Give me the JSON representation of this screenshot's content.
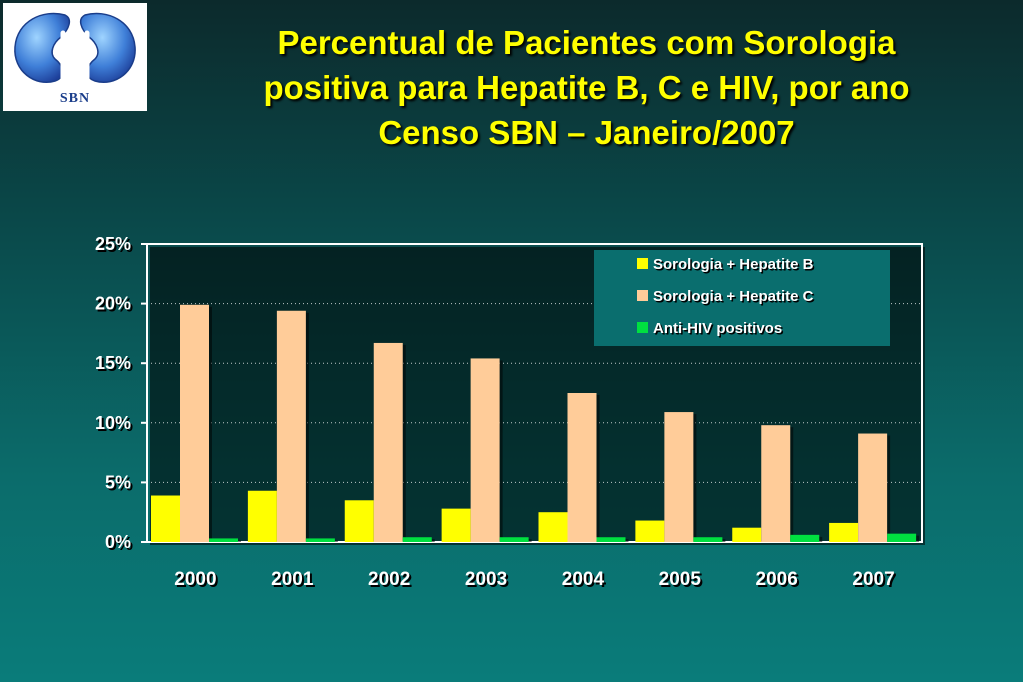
{
  "logo": {
    "text": "SBN"
  },
  "title_lines": [
    "Percentual de Pacientes com Sorologia",
    "positiva para Hepatite B, C e HIV, por ano",
    "Censo SBN – Janeiro/2007"
  ],
  "chart_data": {
    "type": "bar",
    "title": "Percentual de Pacientes com Sorologia positiva para Hepatite B, C e HIV, por ano",
    "subtitle": "Censo SBN – Janeiro/2007",
    "categories": [
      "2000",
      "2001",
      "2002",
      "2003",
      "2004",
      "2005",
      "2006",
      "2007"
    ],
    "series": [
      {
        "name": "Sorologia + Hepatite B",
        "color": "#ffff00",
        "values": [
          3.9,
          4.3,
          3.5,
          2.8,
          2.5,
          1.8,
          1.2,
          1.6
        ]
      },
      {
        "name": "Sorologia + Hepatite C",
        "color": "#ffcc99",
        "values": [
          19.9,
          19.4,
          16.7,
          15.4,
          12.5,
          10.9,
          9.8,
          9.1
        ]
      },
      {
        "name": "Anti-HIV positivos",
        "color": "#00e040",
        "values": [
          0.3,
          0.3,
          0.4,
          0.4,
          0.4,
          0.4,
          0.6,
          0.7
        ]
      }
    ],
    "ylim": [
      0,
      25
    ],
    "yticks": [
      0,
      5,
      10,
      15,
      20,
      25
    ],
    "ytick_labels": [
      "0%",
      "5%",
      "10%",
      "15%",
      "20%",
      "25%"
    ],
    "xlabel": "",
    "ylabel": "",
    "grid": true,
    "legend_position": "top-right"
  }
}
